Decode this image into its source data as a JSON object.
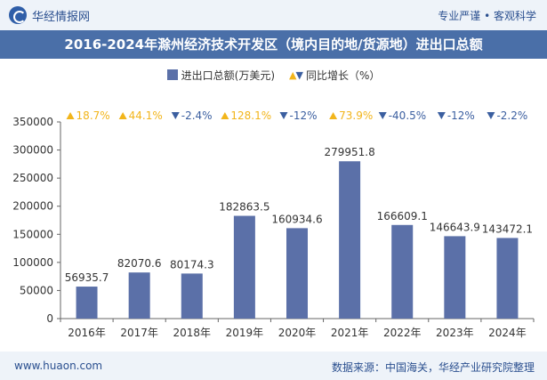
{
  "header": {
    "brand": "华经情报网",
    "tagline": "专业严谨 • 客观科学"
  },
  "title": "2016-2024年滁州经济技术开发区（境内目的地/货源地）进出口总额",
  "legend": {
    "bar": "进出口总额(万美元)",
    "line": "同比增长（%）"
  },
  "footer": {
    "url": "www.huaon.com",
    "source": "数据来源：中国海关，华经产业研究院整理"
  },
  "chart_data": {
    "type": "bar",
    "categories": [
      "2016年",
      "2017年",
      "2018年",
      "2019年",
      "2020年",
      "2021年",
      "2022年",
      "2023年",
      "2024年"
    ],
    "series": [
      {
        "name": "进出口总额(万美元)",
        "values": [
          56935.7,
          82070.6,
          80174.3,
          182863.5,
          160934.6,
          279951.8,
          166609.1,
          146643.9,
          143472.1
        ],
        "color": "#5b70a8"
      }
    ],
    "growth": {
      "name": "同比增长（%）",
      "labels": [
        "18.7%",
        "44.1%",
        "-2.4%",
        "128.1%",
        "-12%",
        "73.9%",
        "-40.5%",
        "-12%",
        "-2.2%"
      ],
      "directions": [
        "up",
        "up",
        "down",
        "up",
        "down",
        "up",
        "down",
        "down",
        "down"
      ],
      "up_color": "#f2b51b",
      "down_color": "#3b5fa0"
    },
    "yticks": [
      0,
      50000,
      100000,
      150000,
      200000,
      250000,
      300000,
      350000
    ],
    "ylim": [
      0,
      350000
    ],
    "grid": false
  }
}
